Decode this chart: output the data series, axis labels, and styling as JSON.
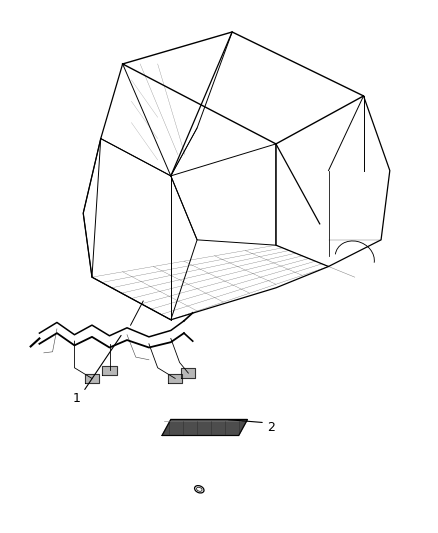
{
  "background_color": "#ffffff",
  "fig_width": 4.38,
  "fig_height": 5.33,
  "dpi": 100,
  "label1_text": "1",
  "label2_text": "2",
  "line_color": "#000000",
  "text_color": "#000000",
  "font_size_labels": 9
}
